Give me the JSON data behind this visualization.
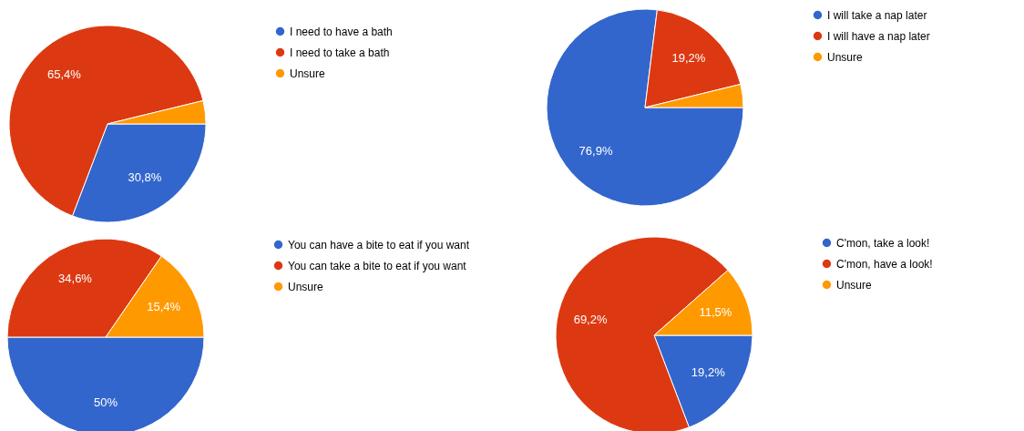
{
  "chart_data": [
    {
      "type": "pie",
      "categories": [
        "I need to have a bath",
        "I need to take a bath",
        "Unsure"
      ],
      "values": [
        30.8,
        65.4,
        3.8
      ],
      "colors": [
        "#3366cc",
        "#dc3912",
        "#ff9900"
      ],
      "value_labels": [
        "30,8%",
        "65,4%",
        null
      ],
      "legend": "right"
    },
    {
      "type": "pie",
      "categories": [
        "I will take a nap later",
        "I will have a nap later",
        "Unsure"
      ],
      "values": [
        76.9,
        19.2,
        3.8
      ],
      "colors": [
        "#3366cc",
        "#dc3912",
        "#ff9900"
      ],
      "value_labels": [
        "76,9%",
        "19,2%",
        null
      ],
      "legend": "right"
    },
    {
      "type": "pie",
      "categories": [
        "You can have a bite to eat if you want",
        "You can take a bite to eat if you want",
        "Unsure"
      ],
      "values": [
        50,
        34.6,
        15.4
      ],
      "colors": [
        "#3366cc",
        "#dc3912",
        "#ff9900"
      ],
      "value_labels": [
        "50%",
        "34,6%",
        "15,4%"
      ],
      "legend": "right"
    },
    {
      "type": "pie",
      "categories": [
        "C'mon, take a look!",
        "C'mon, have a look!",
        "Unsure"
      ],
      "values": [
        19.2,
        69.2,
        11.5
      ],
      "colors": [
        "#3366cc",
        "#dc3912",
        "#ff9900"
      ],
      "value_labels": [
        "19,2%",
        "69,2%",
        "11,5%"
      ],
      "legend": "right"
    }
  ]
}
